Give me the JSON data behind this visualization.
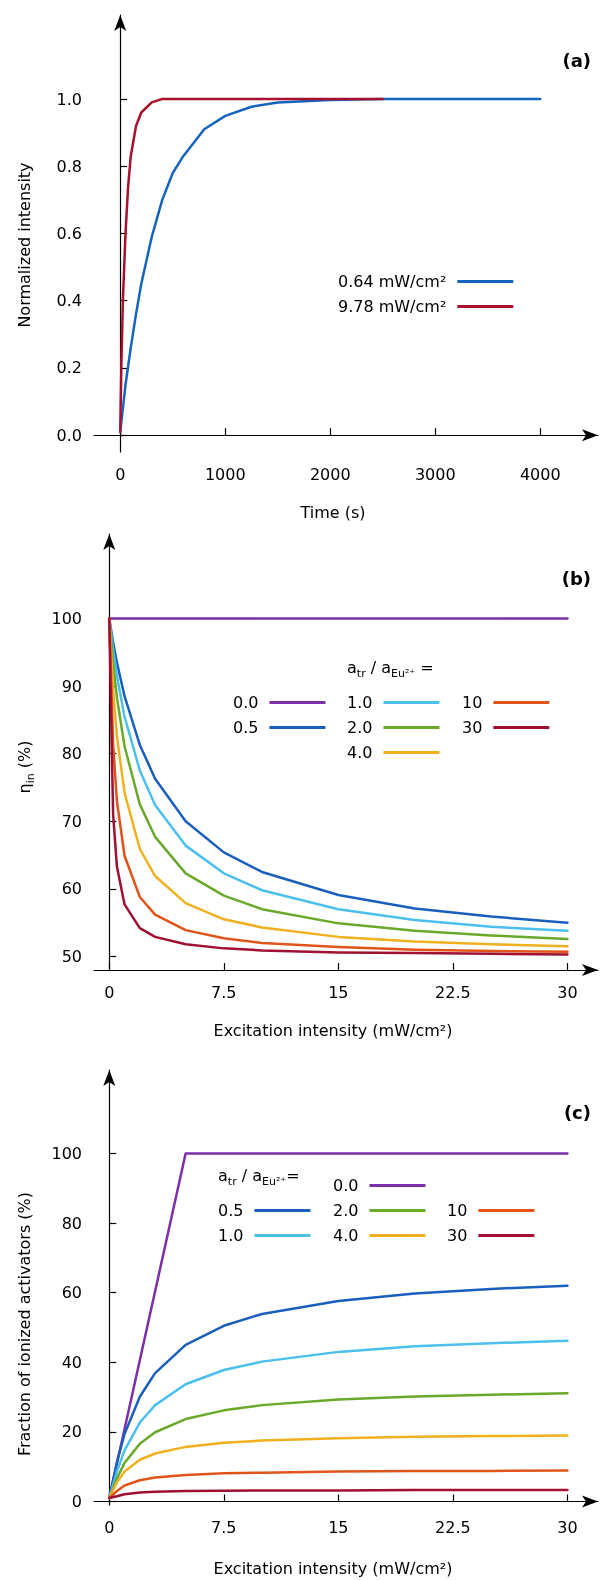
{
  "chart_data": [
    {
      "type": "line",
      "title": "(a)",
      "xlabel": "Time (s)",
      "ylabel": "Normalized intensity",
      "xlim": [
        -250,
        4550
      ],
      "ylim": [
        -0.05,
        1.25
      ],
      "xticks": [
        0,
        1000,
        2000,
        3000,
        4000
      ],
      "yticks": [
        {
          "value": 0,
          "label": "0.0"
        },
        {
          "value": 0.2,
          "label": "0.2"
        },
        {
          "value": 0.4,
          "label": "0.4"
        },
        {
          "value": 0.6,
          "label": "0.6"
        },
        {
          "value": 0.8,
          "label": "0.8"
        },
        {
          "value": 1,
          "label": "1.0"
        }
      ],
      "legend": "right",
      "line_style": "solid",
      "series": [
        {
          "name": "0.64 mW/cm²",
          "color": "#1565c0",
          "x": [
            0,
            50,
            100,
            150,
            200,
            300,
            400,
            500,
            600,
            800,
            1000,
            1250,
            1500,
            2000,
            2500,
            4000
          ],
          "values": [
            0.01,
            0.15,
            0.26,
            0.36,
            0.45,
            0.59,
            0.7,
            0.78,
            0.83,
            0.91,
            0.95,
            0.977,
            0.99,
            0.997,
            1.0,
            1.0
          ]
        },
        {
          "name": "9.78 mW/cm²",
          "color": "#a8102e",
          "x": [
            0,
            10,
            25,
            50,
            75,
            100,
            150,
            200,
            300,
            400,
            2500
          ],
          "values": [
            0.01,
            0.2,
            0.4,
            0.6,
            0.74,
            0.83,
            0.92,
            0.96,
            0.99,
            1.0,
            1.0
          ]
        }
      ]
    },
    {
      "type": "line",
      "title": "(b)",
      "xlabel": "Excitation intensity (mW/cm²)",
      "ylabel": "η$_{in}$ (%)",
      "legend_title": "a$_{tr}$ / a$_{Eu²⁺}$ =",
      "xlim": [
        -1,
        32
      ],
      "ylim": [
        48,
        112.5
      ],
      "xticks": [
        0,
        7.5,
        15,
        22.5,
        30
      ],
      "yticks": [
        50,
        60,
        70,
        80,
        90,
        100
      ],
      "legend": "top right",
      "line_style": "solid",
      "x": [
        0,
        0.25,
        0.5,
        1,
        2,
        3,
        5,
        7.5,
        10,
        15,
        20,
        25,
        30
      ],
      "series": [
        {
          "name": "0.0",
          "color": "#7b2fa8",
          "x": [
            0,
            30
          ],
          "values": [
            100,
            100
          ]
        },
        {
          "name": "0.5",
          "color": "#1a5fbf",
          "values": [
            100,
            96.5,
            93.5,
            88.5,
            81.3,
            76.3,
            70.0,
            65.4,
            62.5,
            59.1,
            57.1,
            55.9,
            55.0
          ]
        },
        {
          "name": "1.0",
          "color": "#4cc0ec",
          "values": [
            100,
            95.4,
            91.5,
            85.5,
            77.5,
            72.4,
            66.4,
            62.3,
            59.8,
            57.0,
            55.4,
            54.4,
            53.8
          ]
        },
        {
          "name": "2.0",
          "color": "#6aaa2a",
          "values": [
            100,
            93.4,
            88.3,
            81.1,
            72.5,
            67.7,
            62.3,
            59.0,
            57.0,
            54.9,
            53.8,
            53.1,
            52.6
          ]
        },
        {
          "name": "4.0",
          "color": "#f0b020",
          "values": [
            100,
            89.4,
            82.6,
            74.2,
            65.9,
            61.9,
            57.9,
            55.5,
            54.3,
            52.9,
            52.2,
            51.8,
            51.5
          ]
        },
        {
          "name": "10",
          "color": "#e0541a",
          "values": [
            100,
            81.5,
            73.0,
            64.9,
            58.8,
            56.2,
            53.9,
            52.7,
            52.0,
            51.4,
            51.0,
            50.8,
            50.7
          ]
        },
        {
          "name": "30",
          "color": "#a01030",
          "values": [
            100,
            71.1,
            63.3,
            57.7,
            54.2,
            52.9,
            51.8,
            51.2,
            50.9,
            50.6,
            50.5,
            50.4,
            50.3
          ]
        }
      ]
    },
    {
      "type": "line",
      "title": "(c)",
      "xlabel": "Excitation intensity (mW/cm²)",
      "ylabel": "Fraction of ionized activators (%)",
      "legend_title": "a$_{tr}$ / a$_{Eu²⁺}$=",
      "xlim": [
        -1,
        32
      ],
      "ylim": [
        -1,
        124
      ],
      "xticks": [
        0,
        7.5,
        15,
        22.5,
        30
      ],
      "yticks": [
        0,
        20,
        40,
        60,
        80,
        100
      ],
      "legend": "top right",
      "line_style": "solid",
      "x": [
        0,
        0.5,
        1,
        2,
        3,
        5,
        7.5,
        10,
        15,
        20,
        25,
        30
      ],
      "series": [
        {
          "name": "0.0",
          "color": "#7b2fa8",
          "x": [
            0,
            5,
            30
          ],
          "values": [
            1,
            100,
            100
          ]
        },
        {
          "name": "0.5",
          "color": "#1a5fbf",
          "values": [
            1,
            11.3,
            19.4,
            30.1,
            36.9,
            45.0,
            50.5,
            53.9,
            57.6,
            59.8,
            61.1,
            62.0
          ]
        },
        {
          "name": "1.0",
          "color": "#4cc0ec",
          "values": [
            1,
            8.6,
            14.7,
            22.7,
            27.7,
            33.7,
            37.8,
            40.2,
            43.0,
            44.6,
            45.5,
            46.2
          ]
        },
        {
          "name": "2.0",
          "color": "#6aaa2a",
          "values": [
            1,
            6.6,
            11.1,
            16.6,
            19.9,
            23.7,
            26.2,
            27.7,
            29.3,
            30.2,
            30.7,
            31.1
          ]
        },
        {
          "name": "4.0",
          "color": "#f0b020",
          "values": [
            1,
            5.5,
            8.6,
            12.0,
            13.8,
            15.7,
            16.9,
            17.5,
            18.2,
            18.6,
            18.8,
            19.0
          ]
        },
        {
          "name": "10",
          "color": "#e0541a",
          "values": [
            1,
            3.0,
            4.6,
            6.1,
            6.9,
            7.6,
            8.1,
            8.3,
            8.6,
            8.8,
            8.8,
            8.9
          ]
        },
        {
          "name": "30",
          "color": "#a01030",
          "values": [
            1,
            1.5,
            2.1,
            2.6,
            2.8,
            3.0,
            3.1,
            3.2,
            3.2,
            3.3,
            3.3,
            3.3
          ]
        }
      ]
    }
  ]
}
